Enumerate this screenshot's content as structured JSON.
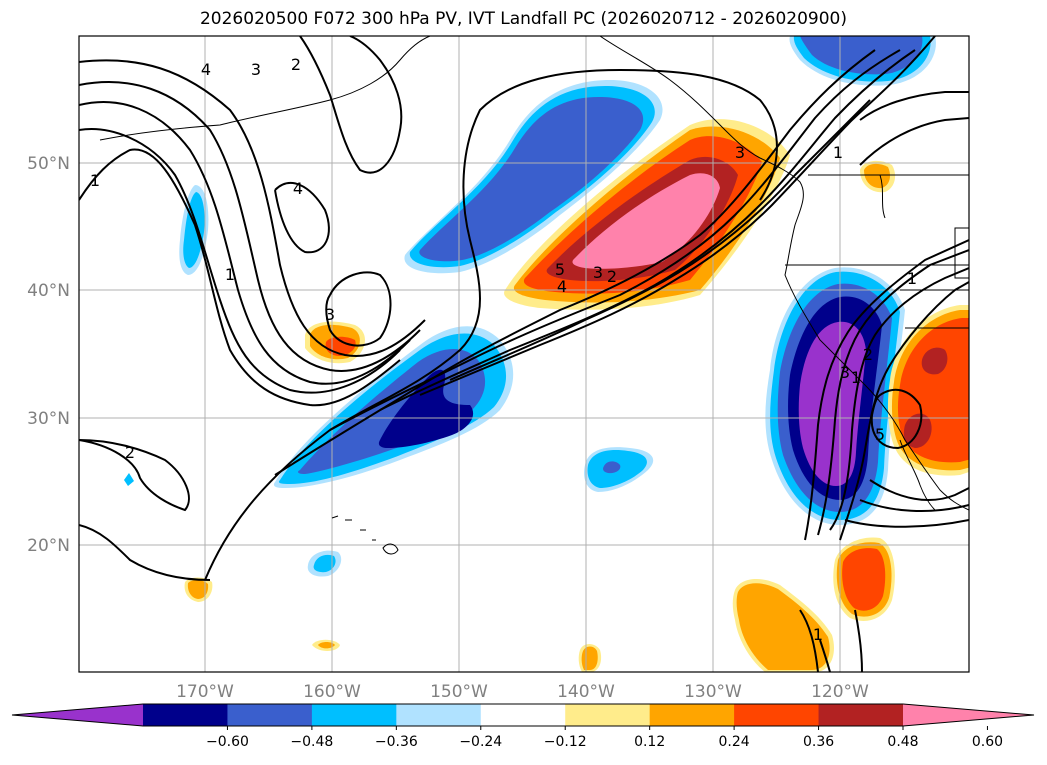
{
  "title": "2026020500 F072 300 hPa PV, IVT Landfall PC (2026020712 - 2026020900)",
  "map": {
    "lat_labels": [
      "50°N",
      "40°N",
      "30°N",
      "20°N"
    ],
    "lon_labels": [
      "170°W",
      "160°W",
      "150°W",
      "140°W",
      "130°W",
      "120°W"
    ],
    "contour_labels": [
      "1",
      "2",
      "3",
      "4",
      "2",
      "1",
      "4",
      "3",
      "3",
      "4",
      "5",
      "2",
      "3",
      "1",
      "2",
      "1",
      "5",
      "1",
      "3",
      "1"
    ]
  },
  "colorbar": {
    "tick_labels": [
      "−0.60",
      "−0.48",
      "−0.36",
      "−0.24",
      "−0.12",
      "0.12",
      "0.24",
      "0.36",
      "0.48",
      "0.60"
    ],
    "colors": [
      "#9932cc",
      "#00008b",
      "#3a5fcd",
      "#00bfff",
      "#b0e2ff",
      "#ffffff",
      "#ffec8b",
      "#ffa500",
      "#ff4500",
      "#b22222",
      "#ff82ab"
    ]
  }
}
